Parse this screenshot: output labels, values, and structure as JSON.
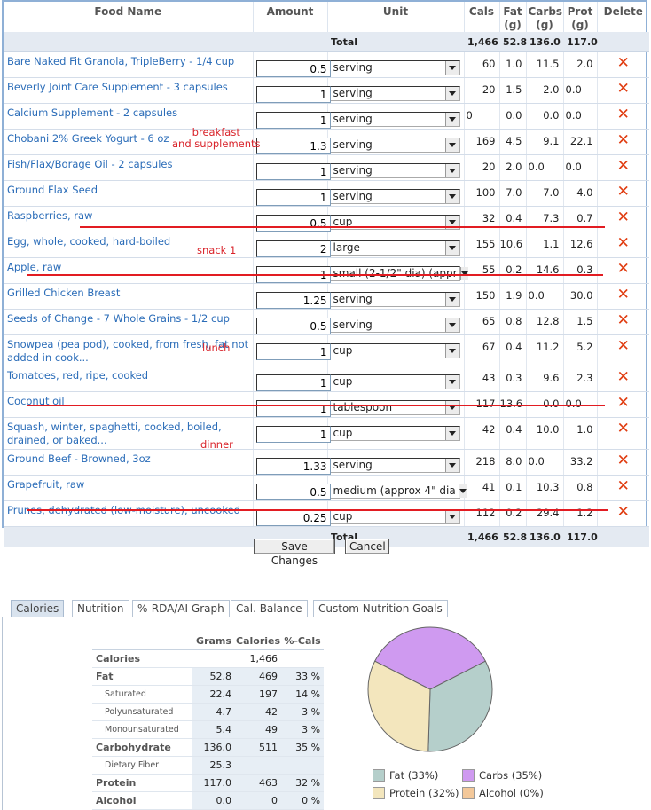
{
  "headers": {
    "food_name": "Food Name",
    "amount": "Amount",
    "unit": "Unit",
    "cals": "Cals",
    "fat": "Fat",
    "fat_unit": "(g)",
    "carbs": "Carbs",
    "carbs_unit": "(g)",
    "prot": "Prot",
    "prot_unit": "(g)",
    "delete": "Delete"
  },
  "total": {
    "label": "Total",
    "cals": "1,466",
    "fat": "52.8",
    "carbs": "136.0",
    "prot": "117.0"
  },
  "foods": [
    {
      "name": "Bare Naked Fit Granola, TripleBerry - 1/4 cup",
      "amount": "0.5",
      "unit": "serving",
      "cals": "60",
      "fat": "1.0",
      "carbs": "11.5",
      "prot": "2.0"
    },
    {
      "name": "Beverly Joint Care Supplement - 3 capsules",
      "amount": "1",
      "unit": "serving",
      "cals": "20",
      "fat": "1.5",
      "carbs": "2.0",
      "prot": "0.0"
    },
    {
      "name": "Calcium Supplement - 2 capsules",
      "amount": "1",
      "unit": "serving",
      "cals": "0",
      "fat": "0.0",
      "carbs": "0.0",
      "prot": "0.0"
    },
    {
      "name": "Chobani 2% Greek Yogurt - 6 oz",
      "amount": "1.3",
      "unit": "serving",
      "cals": "169",
      "fat": "4.5",
      "carbs": "9.1",
      "prot": "22.1"
    },
    {
      "name": "Fish/Flax/Borage Oil - 2 capsules",
      "amount": "1",
      "unit": "serving",
      "cals": "20",
      "fat": "2.0",
      "carbs": "0.0",
      "prot": "0.0"
    },
    {
      "name": "Ground Flax Seed",
      "amount": "1",
      "unit": "serving",
      "cals": "100",
      "fat": "7.0",
      "carbs": "7.0",
      "prot": "4.0"
    },
    {
      "name": "Raspberries, raw",
      "amount": "0.5",
      "unit": "cup",
      "cals": "32",
      "fat": "0.4",
      "carbs": "7.3",
      "prot": "0.7"
    },
    {
      "name": "Egg, whole, cooked, hard-boiled",
      "amount": "2",
      "unit": "large",
      "cals": "155",
      "fat": "10.6",
      "carbs": "1.1",
      "prot": "12.6"
    },
    {
      "name": "Apple, raw",
      "amount": "1",
      "unit": "small (2-1/2\" dia) (appr",
      "cals": "55",
      "fat": "0.2",
      "carbs": "14.6",
      "prot": "0.3"
    },
    {
      "name": "Grilled Chicken Breast",
      "amount": "1.25",
      "unit": "serving",
      "cals": "150",
      "fat": "1.9",
      "carbs": "0.0",
      "prot": "30.0"
    },
    {
      "name": "Seeds of Change - 7 Whole Grains - 1/2 cup",
      "amount": "0.5",
      "unit": "serving",
      "cals": "65",
      "fat": "0.8",
      "carbs": "12.8",
      "prot": "1.5"
    },
    {
      "name": "Snowpea (pea pod), cooked, from fresh, fat not added in cook...",
      "amount": "1",
      "unit": "cup",
      "cals": "67",
      "fat": "0.4",
      "carbs": "11.2",
      "prot": "5.2"
    },
    {
      "name": "Tomatoes, red, ripe, cooked",
      "amount": "1",
      "unit": "cup",
      "cals": "43",
      "fat": "0.3",
      "carbs": "9.6",
      "prot": "2.3"
    },
    {
      "name": "Coconut oil",
      "amount": "1",
      "unit": "tablespoon",
      "cals": "117",
      "fat": "13.6",
      "carbs": "0.0",
      "prot": "0.0"
    },
    {
      "name": "Squash, winter, spaghetti, cooked, boiled, drained, or baked...",
      "amount": "1",
      "unit": "cup",
      "cals": "42",
      "fat": "0.4",
      "carbs": "10.0",
      "prot": "1.0"
    },
    {
      "name": "Ground Beef - Browned, 3oz",
      "amount": "1.33",
      "unit": "serving",
      "cals": "218",
      "fat": "8.0",
      "carbs": "0.0",
      "prot": "33.2"
    },
    {
      "name": "Grapefruit, raw",
      "amount": "0.5",
      "unit": "medium (approx 4\" dia",
      "cals": "41",
      "fat": "0.1",
      "carbs": "10.3",
      "prot": "0.8"
    },
    {
      "name": "Prunes, dehydrated (low-moisture), uncooked",
      "amount": "0.25",
      "unit": "cup",
      "cals": "112",
      "fat": "0.2",
      "carbs": "29.4",
      "prot": "1.2"
    }
  ],
  "annotations": {
    "breakfast_line1": "breakfast",
    "breakfast_line2": "and supplements",
    "snack": "snack 1",
    "lunch": "lunch",
    "dinner": "dinner",
    "color": "#d9232a"
  },
  "buttons": {
    "save": "Save Changes",
    "cancel": "Cancel"
  },
  "tabs": [
    "Calories",
    "Nutrition",
    "%-RDA/AI Graph",
    "Cal. Balance",
    "Custom Nutrition Goals"
  ],
  "summary": {
    "headers": {
      "grams": "Grams",
      "calories": "Calories",
      "pct": "%-Cals"
    },
    "rows": [
      {
        "label": "Calories",
        "grams": "",
        "calories": "1,466",
        "pct": ""
      },
      {
        "label": "Fat",
        "grams": "52.8",
        "calories": "469",
        "pct": "33 %"
      },
      {
        "label": "Saturated",
        "grams": "22.4",
        "calories": "197",
        "pct": "14 %"
      },
      {
        "label": "Polyunsaturated",
        "grams": "4.7",
        "calories": "42",
        "pct": "3 %"
      },
      {
        "label": "Monounsaturated",
        "grams": "5.4",
        "calories": "49",
        "pct": "3 %"
      },
      {
        "label": "Carbohydrate",
        "grams": "136.0",
        "calories": "511",
        "pct": "35 %"
      },
      {
        "label": "Dietary Fiber",
        "grams": "25.3",
        "calories": "",
        "pct": ""
      },
      {
        "label": "Protein",
        "grams": "117.0",
        "calories": "463",
        "pct": "32 %"
      },
      {
        "label": "Alcohol",
        "grams": "0.0",
        "calories": "0",
        "pct": "0 %"
      }
    ]
  },
  "chart_data": {
    "type": "pie",
    "slices": [
      {
        "label": "Fat (33%)",
        "value": 33,
        "color": "#b5cfcb"
      },
      {
        "label": "Carbs (35%)",
        "value": 35,
        "color": "#cf9af0"
      },
      {
        "label": "Protein (32%)",
        "value": 32,
        "color": "#f3e6bd"
      },
      {
        "label": "Alcohol (0%)",
        "value": 0,
        "color": "#f3c89a"
      }
    ],
    "legend_position": "bottom"
  }
}
